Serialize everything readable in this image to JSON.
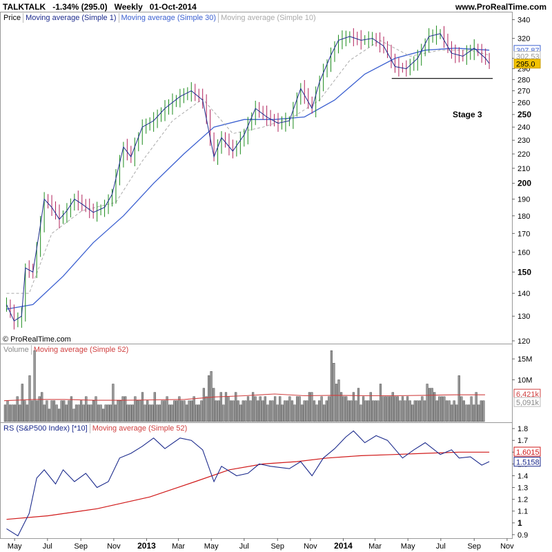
{
  "header": {
    "symbol": "TALKTALK",
    "change": "-1.34% (295.0)",
    "period": "Weekly",
    "date": "01-Oct-2014",
    "site": "www.ProRealTime.com"
  },
  "copyright": "© ProRealTime.com",
  "price_panel": {
    "legend": [
      "Price",
      "Moving average (Simple 1)",
      "Moving average (Simple 30)",
      "Moving average (Simple 10)"
    ],
    "legend_colors": [
      "#000000",
      "#1b2a8c",
      "#3a5fd0",
      "#aaaaaa"
    ],
    "annotation": "Stage 3",
    "y_ticks": [
      "340",
      "320",
      "300",
      "290",
      "280",
      "270",
      "260",
      "250",
      "240",
      "230",
      "220",
      "210",
      "200",
      "190",
      "180",
      "170",
      "160",
      "150",
      "140",
      "130",
      "120"
    ],
    "bold_ticks": [
      "250",
      "200",
      "150"
    ],
    "last_labels": {
      "ma30": "307.87",
      "ma10": "302.53",
      "price": "295.0"
    }
  },
  "volume_panel": {
    "legend": [
      "Volume",
      "Moving average (Simple 52)"
    ],
    "legend_colors": [
      "#888888",
      "#d04040"
    ],
    "y_ticks": [
      "15M",
      "10M"
    ],
    "last_labels": {
      "ma52": "6,421k",
      "volume": "5,091k"
    }
  },
  "rs_panel": {
    "legend": [
      "RS (S&P500 Index) [*10]",
      "Moving average (Simple 52)"
    ],
    "legend_colors": [
      "#1b2a8c",
      "#d04040"
    ],
    "y_ticks": [
      "1.8",
      "1.7",
      "1.6",
      "1.5",
      "1.4",
      "1.3",
      "1.2",
      "1.1",
      "1",
      "0.9"
    ],
    "last_labels": {
      "ma52": "1.6015",
      "rs": "1.5158"
    }
  },
  "x_axis": {
    "labels": [
      "May",
      "Jul",
      "Sep",
      "Nov",
      "2013",
      "Mar",
      "May",
      "Jul",
      "Sep",
      "Nov",
      "2014",
      "Mar",
      "May",
      "Jul",
      "Sep",
      "Nov"
    ],
    "bold": [
      "2013",
      "2014"
    ]
  },
  "chart_data": {
    "type": "line",
    "title": "TALKTALK Weekly",
    "x_range": [
      "2012-04",
      "2014-10"
    ],
    "price": {
      "ylim": [
        120,
        345
      ],
      "scale": "log",
      "close_points": [
        [
          "2012-04-16",
          135
        ],
        [
          "2012-04-30",
          128
        ],
        [
          "2012-05-14",
          130
        ],
        [
          "2012-05-21",
          152
        ],
        [
          "2012-06-04",
          150
        ],
        [
          "2012-06-18",
          175
        ],
        [
          "2012-06-25",
          190
        ],
        [
          "2012-07-09",
          185
        ],
        [
          "2012-07-23",
          178
        ],
        [
          "2012-08-06",
          183
        ],
        [
          "2012-08-20",
          190
        ],
        [
          "2012-09-03",
          187
        ],
        [
          "2012-09-24",
          182
        ],
        [
          "2012-10-15",
          185
        ],
        [
          "2012-10-29",
          193
        ],
        [
          "2012-11-19",
          225
        ],
        [
          "2012-12-03",
          218
        ],
        [
          "2012-12-24",
          240
        ],
        [
          "2013-01-14",
          245
        ],
        [
          "2013-02-04",
          255
        ],
        [
          "2013-03-04",
          265
        ],
        [
          "2013-03-25",
          270
        ],
        [
          "2013-04-15",
          262
        ],
        [
          "2013-05-06",
          218
        ],
        [
          "2013-05-20",
          232
        ],
        [
          "2013-06-10",
          222
        ],
        [
          "2013-07-01",
          234
        ],
        [
          "2013-07-22",
          255
        ],
        [
          "2013-08-12",
          248
        ],
        [
          "2013-09-02",
          243
        ],
        [
          "2013-09-23",
          245
        ],
        [
          "2013-10-14",
          272
        ],
        [
          "2013-11-04",
          255
        ],
        [
          "2013-11-18",
          278
        ],
        [
          "2013-12-09",
          303
        ],
        [
          "2013-12-23",
          318
        ],
        [
          "2014-01-13",
          322
        ],
        [
          "2014-02-03",
          318
        ],
        [
          "2014-02-24",
          320
        ],
        [
          "2014-03-17",
          312
        ],
        [
          "2014-04-07",
          292
        ],
        [
          "2014-04-28",
          290
        ],
        [
          "2014-05-19",
          300
        ],
        [
          "2014-06-09",
          322
        ],
        [
          "2014-06-30",
          325
        ],
        [
          "2014-07-21",
          305
        ],
        [
          "2014-08-11",
          302
        ],
        [
          "2014-09-01",
          310
        ],
        [
          "2014-09-22",
          300
        ],
        [
          "2014-09-29",
          295
        ]
      ],
      "ma10_points": [
        [
          "2012-04-16",
          140
        ],
        [
          "2012-05-28",
          140
        ],
        [
          "2012-07-09",
          170
        ],
        [
          "2012-09-03",
          183
        ],
        [
          "2012-11-05",
          188
        ],
        [
          "2012-12-24",
          215
        ],
        [
          "2013-02-18",
          245
        ],
        [
          "2013-04-15",
          263
        ],
        [
          "2013-06-10",
          235
        ],
        [
          "2013-08-05",
          240
        ],
        [
          "2013-09-30",
          248
        ],
        [
          "2013-11-18",
          262
        ],
        [
          "2014-01-13",
          298
        ],
        [
          "2014-03-10",
          318
        ],
        [
          "2014-05-05",
          302
        ],
        [
          "2014-06-30",
          308
        ],
        [
          "2014-08-25",
          308
        ],
        [
          "2014-09-29",
          303
        ]
      ],
      "ma30_points": [
        [
          "2012-04-16",
          133
        ],
        [
          "2012-06-04",
          135
        ],
        [
          "2012-07-30",
          148
        ],
        [
          "2012-09-24",
          165
        ],
        [
          "2012-11-19",
          180
        ],
        [
          "2013-01-14",
          200
        ],
        [
          "2013-03-11",
          220
        ],
        [
          "2013-05-06",
          240
        ],
        [
          "2013-07-01",
          246
        ],
        [
          "2013-08-26",
          246
        ],
        [
          "2013-10-21",
          248
        ],
        [
          "2013-12-16",
          262
        ],
        [
          "2014-02-10",
          285
        ],
        [
          "2014-04-07",
          300
        ],
        [
          "2014-06-02",
          308
        ],
        [
          "2014-07-28",
          310
        ],
        [
          "2014-09-29",
          308
        ]
      ],
      "support_line": {
        "value": 281,
        "from": "2014-04-01",
        "to": "2014-09-29"
      }
    },
    "volume": {
      "unit": "shares",
      "ylim": [
        0,
        18000000
      ],
      "values_M": [
        4,
        5,
        4,
        4,
        4,
        6,
        4,
        9,
        5,
        4,
        11,
        5,
        17,
        5,
        6,
        7,
        4,
        5,
        3,
        5,
        5,
        4,
        3,
        5,
        5,
        4,
        5,
        6,
        3,
        4,
        4,
        5,
        4,
        6,
        4,
        4,
        5,
        6,
        4,
        4,
        3,
        4,
        4,
        4,
        9,
        4,
        5,
        5,
        6,
        6,
        4,
        4,
        4,
        6,
        5,
        5,
        7,
        4,
        5,
        4,
        4,
        7,
        4,
        4,
        5,
        5,
        6,
        4,
        4,
        5,
        5,
        6,
        5,
        5,
        4,
        5,
        5,
        6,
        4,
        4,
        5,
        8,
        6,
        11,
        12,
        8,
        5,
        5,
        7,
        4,
        7,
        6,
        5,
        5,
        7,
        5,
        4,
        5,
        5,
        6,
        5,
        7,
        6,
        5,
        6,
        5,
        6,
        4,
        5,
        5,
        6,
        4,
        6,
        4,
        5,
        5,
        6,
        5,
        4,
        6,
        6,
        4,
        5,
        5,
        7,
        7,
        5,
        4,
        5,
        6,
        4,
        5,
        6,
        17,
        14,
        9,
        10,
        7,
        6,
        6,
        5,
        5,
        7,
        5,
        8,
        4,
        6,
        5,
        5,
        7,
        5,
        5,
        5,
        9,
        6,
        6,
        6,
        6,
        7,
        6,
        6,
        5,
        6,
        5,
        6,
        5,
        4,
        5,
        5,
        5,
        6,
        5,
        9,
        8,
        8,
        7,
        5,
        6,
        6,
        6,
        5,
        5,
        4,
        5,
        4,
        11,
        6,
        5,
        4,
        4,
        6,
        4,
        7,
        4,
        5,
        5
      ],
      "ma52_M": [
        5.0,
        5.3,
        5.3,
        5.1,
        5.1,
        5.2,
        5.3,
        5.9,
        6.2,
        6.6,
        6.2,
        6.3,
        6.2,
        6.2,
        6.3,
        6.4,
        6.4
      ]
    },
    "rs": {
      "ylim": [
        0.87,
        1.83
      ],
      "rs_points": [
        [
          "2012-04-16",
          0.95
        ],
        [
          "2012-05-07",
          0.89
        ],
        [
          "2012-05-28",
          1.08
        ],
        [
          "2012-06-11",
          1.38
        ],
        [
          "2012-06-25",
          1.45
        ],
        [
          "2012-07-16",
          1.33
        ],
        [
          "2012-07-30",
          1.45
        ],
        [
          "2012-08-20",
          1.35
        ],
        [
          "2012-09-10",
          1.42
        ],
        [
          "2012-10-01",
          1.3
        ],
        [
          "2012-10-22",
          1.35
        ],
        [
          "2012-11-12",
          1.55
        ],
        [
          "2012-12-03",
          1.59
        ],
        [
          "2012-12-24",
          1.65
        ],
        [
          "2013-01-14",
          1.72
        ],
        [
          "2013-02-04",
          1.63
        ],
        [
          "2013-03-04",
          1.72
        ],
        [
          "2013-03-25",
          1.7
        ],
        [
          "2013-04-15",
          1.62
        ],
        [
          "2013-05-06",
          1.35
        ],
        [
          "2013-05-20",
          1.48
        ],
        [
          "2013-06-17",
          1.4
        ],
        [
          "2013-07-08",
          1.42
        ],
        [
          "2013-07-29",
          1.5
        ],
        [
          "2013-08-19",
          1.48
        ],
        [
          "2013-09-23",
          1.46
        ],
        [
          "2013-10-14",
          1.52
        ],
        [
          "2013-11-04",
          1.4
        ],
        [
          "2013-11-25",
          1.55
        ],
        [
          "2013-12-16",
          1.63
        ],
        [
          "2014-01-06",
          1.73
        ],
        [
          "2014-01-20",
          1.78
        ],
        [
          "2014-02-10",
          1.68
        ],
        [
          "2014-03-03",
          1.74
        ],
        [
          "2014-03-24",
          1.7
        ],
        [
          "2014-04-21",
          1.55
        ],
        [
          "2014-05-12",
          1.62
        ],
        [
          "2014-06-02",
          1.68
        ],
        [
          "2014-06-30",
          1.58
        ],
        [
          "2014-07-21",
          1.62
        ],
        [
          "2014-08-04",
          1.55
        ],
        [
          "2014-08-25",
          1.56
        ],
        [
          "2014-09-15",
          1.49
        ],
        [
          "2014-09-29",
          1.52
        ]
      ],
      "ma52_points": [
        [
          "2012-04-16",
          1.03
        ],
        [
          "2012-07-02",
          1.06
        ],
        [
          "2012-10-01",
          1.12
        ],
        [
          "2013-01-07",
          1.22
        ],
        [
          "2013-04-01",
          1.35
        ],
        [
          "2013-06-03",
          1.45
        ],
        [
          "2013-08-05",
          1.5
        ],
        [
          "2013-10-07",
          1.52
        ],
        [
          "2013-12-02",
          1.55
        ],
        [
          "2014-02-03",
          1.57
        ],
        [
          "2014-04-07",
          1.58
        ],
        [
          "2014-06-02",
          1.59
        ],
        [
          "2014-08-04",
          1.6
        ],
        [
          "2014-09-29",
          1.6
        ]
      ]
    }
  }
}
